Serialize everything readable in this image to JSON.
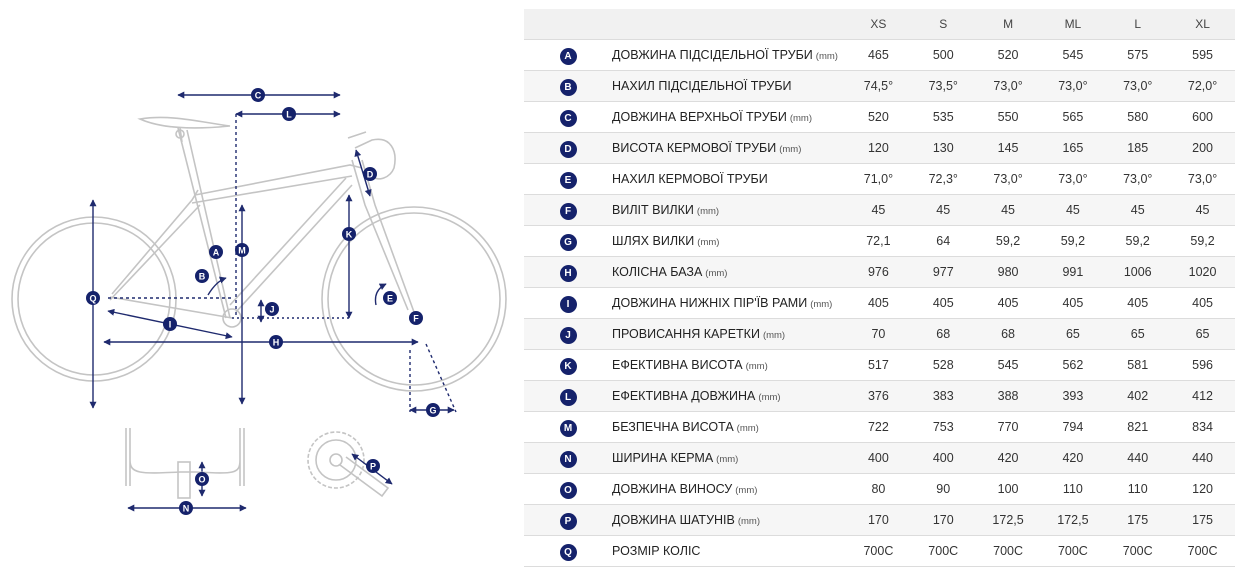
{
  "table": {
    "sizes": [
      "XS",
      "S",
      "M",
      "ML",
      "L",
      "XL"
    ],
    "rows": [
      {
        "code": "A",
        "name": "ДОВЖИНА ПІДСІДЕЛЬНОЇ ТРУБИ",
        "unit": "(mm)",
        "values": [
          "465",
          "500",
          "520",
          "545",
          "575",
          "595"
        ]
      },
      {
        "code": "B",
        "name": "НАХИЛ ПІДСІДЕЛЬНОЇ ТРУБИ",
        "unit": "",
        "values": [
          "74,5°",
          "73,5°",
          "73,0°",
          "73,0°",
          "73,0°",
          "72,0°"
        ]
      },
      {
        "code": "C",
        "name": "ДОВЖИНА ВЕРХНЬОЇ ТРУБИ",
        "unit": "(mm)",
        "values": [
          "520",
          "535",
          "550",
          "565",
          "580",
          "600"
        ]
      },
      {
        "code": "D",
        "name": "ВИСОТА КЕРМОВОЇ ТРУБИ",
        "unit": "(mm)",
        "values": [
          "120",
          "130",
          "145",
          "165",
          "185",
          "200"
        ]
      },
      {
        "code": "E",
        "name": "НАХИЛ КЕРМОВОЇ ТРУБИ",
        "unit": "",
        "values": [
          "71,0°",
          "72,3°",
          "73,0°",
          "73,0°",
          "73,0°",
          "73,0°"
        ]
      },
      {
        "code": "F",
        "name": "ВИЛІТ ВИЛКИ",
        "unit": "(mm)",
        "values": [
          "45",
          "45",
          "45",
          "45",
          "45",
          "45"
        ]
      },
      {
        "code": "G",
        "name": "ШЛЯХ ВИЛКИ",
        "unit": "(mm)",
        "values": [
          "72,1",
          "64",
          "59,2",
          "59,2",
          "59,2",
          "59,2"
        ]
      },
      {
        "code": "H",
        "name": "КОЛІСНА БАЗА",
        "unit": "(mm)",
        "values": [
          "976",
          "977",
          "980",
          "991",
          "1006",
          "1020"
        ]
      },
      {
        "code": "I",
        "name": "ДОВЖИНА НИЖНІХ ПІР'ЇВ РАМИ",
        "unit": "(mm)",
        "values": [
          "405",
          "405",
          "405",
          "405",
          "405",
          "405"
        ]
      },
      {
        "code": "J",
        "name": "ПРОВИСАННЯ КАРЕТКИ",
        "unit": "(mm)",
        "values": [
          "70",
          "68",
          "68",
          "65",
          "65",
          "65"
        ]
      },
      {
        "code": "K",
        "name": "ЕФЕКТИВНА ВИСОТА",
        "unit": "(mm)",
        "values": [
          "517",
          "528",
          "545",
          "562",
          "581",
          "596"
        ]
      },
      {
        "code": "L",
        "name": "ЕФЕКТИВНА ДОВЖИНА",
        "unit": "(mm)",
        "values": [
          "376",
          "383",
          "388",
          "393",
          "402",
          "412"
        ]
      },
      {
        "code": "M",
        "name": "БЕЗПЕЧНА ВИСОТА",
        "unit": "(mm)",
        "values": [
          "722",
          "753",
          "770",
          "794",
          "821",
          "834"
        ]
      },
      {
        "code": "N",
        "name": "ШИРИНА КЕРМА",
        "unit": "(mm)",
        "values": [
          "400",
          "400",
          "420",
          "420",
          "440",
          "440"
        ]
      },
      {
        "code": "O",
        "name": "ДОВЖИНА ВИНОСУ",
        "unit": "(mm)",
        "values": [
          "80",
          "90",
          "100",
          "110",
          "110",
          "120"
        ]
      },
      {
        "code": "P",
        "name": "ДОВЖИНА ШАТУНІВ",
        "unit": "(mm)",
        "values": [
          "170",
          "170",
          "172,5",
          "172,5",
          "175",
          "175"
        ]
      },
      {
        "code": "Q",
        "name": "РОЗМІР КОЛІС",
        "unit": "",
        "values": [
          "700C",
          "700C",
          "700C",
          "700C",
          "700C",
          "700C"
        ]
      }
    ]
  },
  "diagram": {
    "markers": [
      "A",
      "B",
      "C",
      "D",
      "E",
      "F",
      "G",
      "H",
      "I",
      "J",
      "K",
      "L",
      "M",
      "N",
      "O",
      "P",
      "Q"
    ]
  },
  "colors": {
    "accent": "#15226b",
    "line": "#1f2a6e",
    "frame": "#c4c4c4",
    "header_bg": "#f1f1f1",
    "stripe_bg": "#f6f6f6"
  }
}
